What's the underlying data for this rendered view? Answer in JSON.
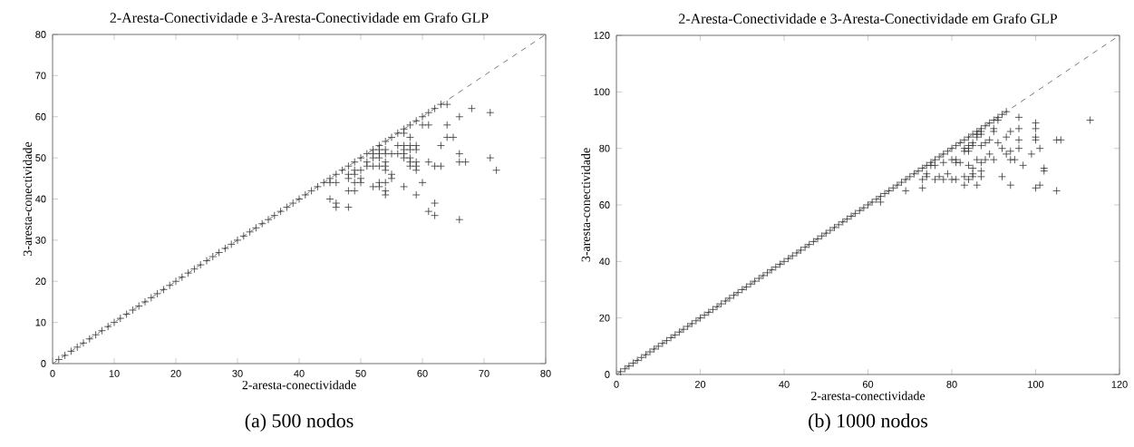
{
  "chart_data": [
    {
      "type": "scatter",
      "title": "2-Aresta-Conectividade e 3-Aresta-Conectividade em Grafo GLP",
      "xlabel": "2-aresta-conectividade",
      "ylabel": "3-aresta-conectividade",
      "annotations": [
        "(a) 500 nodos"
      ],
      "xlim": [
        0,
        80
      ],
      "ylim": [
        0,
        80
      ],
      "xticks": [
        0,
        10,
        20,
        30,
        40,
        50,
        60,
        70,
        80
      ],
      "yticks": [
        0,
        10,
        20,
        30,
        40,
        50,
        60,
        70,
        80
      ],
      "series": [
        {
          "marker": "cross",
          "color": "#333333",
          "x": [
            1,
            2,
            3,
            4,
            5,
            6,
            7,
            8,
            9,
            10,
            11,
            12,
            13,
            14,
            15,
            16,
            17,
            18,
            19,
            20,
            21,
            22,
            23,
            24,
            25,
            26,
            27,
            28,
            29,
            30,
            31,
            32,
            33,
            34,
            35,
            36,
            37,
            38,
            39,
            40,
            41,
            42,
            43,
            44,
            45,
            46,
            47,
            48,
            49,
            50,
            51,
            52,
            53,
            54,
            55,
            56,
            57,
            58,
            59,
            60,
            61,
            62,
            63,
            64,
            45,
            46,
            45,
            46,
            46,
            48,
            48,
            48,
            48,
            49,
            49,
            49,
            49,
            50,
            50,
            50,
            51,
            51,
            52,
            52,
            52,
            52,
            53,
            53,
            53,
            53,
            53,
            53,
            54,
            54,
            54,
            54,
            54,
            54,
            54,
            54,
            55,
            55,
            55,
            56,
            56,
            57,
            57,
            57,
            57,
            57,
            57,
            58,
            58,
            58,
            58,
            58,
            58,
            59,
            59,
            59,
            59,
            59,
            59,
            60,
            60,
            61,
            61,
            61,
            62,
            62,
            62,
            63,
            63,
            64,
            64,
            65,
            66,
            66,
            66,
            66,
            67,
            68,
            71,
            71,
            72
          ],
          "values": [
            1,
            2,
            3,
            4,
            5,
            6,
            7,
            8,
            9,
            10,
            11,
            12,
            13,
            14,
            15,
            16,
            17,
            18,
            19,
            20,
            21,
            22,
            23,
            24,
            25,
            26,
            27,
            28,
            29,
            30,
            31,
            32,
            33,
            34,
            35,
            36,
            37,
            38,
            39,
            40,
            41,
            42,
            43,
            44,
            45,
            46,
            47,
            48,
            49,
            50,
            51,
            52,
            53,
            54,
            55,
            56,
            57,
            58,
            59,
            60,
            61,
            62,
            63,
            63,
            44,
            44,
            40,
            39,
            38,
            46,
            45,
            42,
            38,
            47,
            46,
            44,
            42,
            47,
            45,
            44,
            49,
            48,
            51,
            50,
            48,
            43,
            52,
            51,
            50,
            48,
            44,
            43,
            52,
            51,
            49,
            48,
            47,
            44,
            42,
            41,
            51,
            46,
            45,
            53,
            51,
            53,
            52,
            51,
            50,
            43,
            56,
            55,
            53,
            52,
            50,
            49,
            48,
            53,
            52,
            49,
            48,
            47,
            41,
            58,
            44,
            58,
            49,
            37,
            48,
            39,
            36,
            53,
            48,
            58,
            55,
            55,
            60,
            51,
            49,
            35,
            49,
            62,
            61,
            50,
            47
          ]
        },
        {
          "type": "line",
          "color": "#555555",
          "line_style": "dashed",
          "x": [
            0,
            80
          ],
          "values": [
            0,
            80
          ]
        }
      ]
    },
    {
      "type": "scatter",
      "title": "2-Aresta-Conectividade e 3-Aresta-Conectividade em Grafo GLP",
      "xlabel": "2-aresta-conectividade",
      "ylabel": "3-aresta-conectividade",
      "annotations": [
        "(b) 1000 nodos"
      ],
      "xlim": [
        0,
        120
      ],
      "ylim": [
        0,
        120
      ],
      "xticks": [
        0,
        20,
        40,
        60,
        80,
        100,
        120
      ],
      "yticks": [
        0,
        20,
        40,
        60,
        80,
        100,
        120
      ],
      "series": [
        {
          "marker": "cross",
          "color": "#333333",
          "x": [
            1,
            2,
            3,
            4,
            5,
            6,
            7,
            8,
            9,
            10,
            11,
            12,
            13,
            14,
            15,
            16,
            17,
            18,
            19,
            20,
            21,
            22,
            23,
            24,
            25,
            26,
            27,
            28,
            29,
            30,
            31,
            32,
            33,
            34,
            35,
            36,
            37,
            38,
            39,
            40,
            41,
            42,
            43,
            44,
            45,
            46,
            47,
            48,
            49,
            50,
            51,
            52,
            53,
            54,
            55,
            56,
            57,
            58,
            59,
            60,
            61,
            62,
            63,
            64,
            65,
            66,
            67,
            68,
            69,
            70,
            71,
            72,
            73,
            74,
            75,
            76,
            77,
            78,
            79,
            80,
            81,
            82,
            83,
            84,
            85,
            86,
            87,
            88,
            89,
            90,
            91,
            92,
            93,
            63,
            69,
            73,
            73,
            74,
            74,
            75,
            76,
            76,
            77,
            78,
            78,
            79,
            80,
            80,
            81,
            81,
            81,
            82,
            83,
            83,
            83,
            83,
            84,
            84,
            84,
            84,
            84,
            85,
            85,
            85,
            85,
            85,
            86,
            86,
            86,
            86,
            87,
            87,
            87,
            87,
            87,
            87,
            88,
            88,
            89,
            89,
            90,
            90,
            90,
            91,
            91,
            92,
            92,
            93,
            93,
            94,
            94,
            94,
            94,
            95,
            96,
            96,
            96,
            96,
            97,
            99,
            100,
            100,
            100,
            100,
            100,
            101,
            101,
            102,
            102,
            105,
            105,
            106,
            113
          ],
          "values": [
            1,
            2,
            3,
            4,
            5,
            6,
            7,
            8,
            9,
            10,
            11,
            12,
            13,
            14,
            15,
            16,
            17,
            18,
            19,
            20,
            21,
            22,
            23,
            24,
            25,
            26,
            27,
            28,
            29,
            30,
            31,
            32,
            33,
            34,
            35,
            36,
            37,
            38,
            39,
            40,
            41,
            42,
            43,
            44,
            45,
            46,
            47,
            48,
            49,
            50,
            51,
            52,
            53,
            54,
            55,
            56,
            57,
            58,
            59,
            60,
            61,
            62,
            63,
            64,
            65,
            66,
            67,
            68,
            69,
            70,
            71,
            72,
            73,
            74,
            75,
            76,
            77,
            78,
            79,
            80,
            81,
            82,
            83,
            84,
            85,
            86,
            87,
            88,
            89,
            90,
            91,
            92,
            93,
            61,
            65,
            69,
            66,
            71,
            70,
            74,
            74,
            69,
            70,
            75,
            69,
            71,
            76,
            69,
            76,
            75,
            69,
            75,
            80,
            79,
            70,
            67,
            81,
            80,
            79,
            74,
            69,
            82,
            81,
            73,
            71,
            70,
            85,
            84,
            76,
            67,
            86,
            85,
            81,
            75,
            72,
            70,
            82,
            76,
            83,
            78,
            87,
            86,
            76,
            90,
            82,
            80,
            70,
            84,
            78,
            86,
            79,
            76,
            67,
            76,
            91,
            87,
            83,
            80,
            74,
            78,
            89,
            87,
            84,
            83,
            66,
            80,
            67,
            73,
            72,
            83,
            65,
            83,
            90
          ]
        },
        {
          "type": "line",
          "color": "#555555",
          "line_style": "dashed",
          "x": [
            0,
            120
          ],
          "values": [
            0,
            120
          ]
        }
      ]
    }
  ]
}
